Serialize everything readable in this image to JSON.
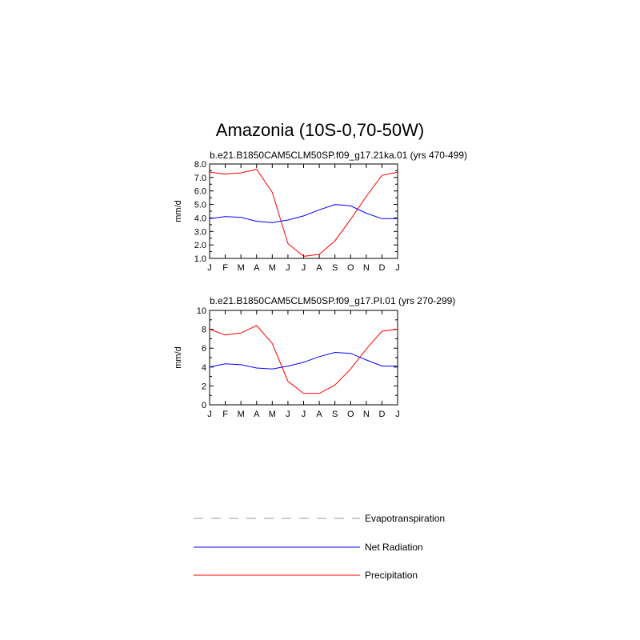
{
  "title": "Amazonia (10S-0,70-50W)",
  "colors": {
    "precipitation": "#ff0000",
    "net_radiation": "#0000ff",
    "evapotranspiration": "#999999"
  },
  "legend": [
    {
      "label": "Evapotranspiration",
      "color": "#999999",
      "style": "dashed"
    },
    {
      "label": "Net Radiation",
      "color": "#0000ff",
      "style": "solid"
    },
    {
      "label": "Precipitation",
      "color": "#ff0000",
      "style": "solid"
    }
  ],
  "chart_data": [
    {
      "type": "line",
      "title": "b.e21.B1850CAM5CLM50SP.f09_g17.21ka.01 (yrs 470-499)",
      "ylabel": "mm/d",
      "xlabel": "",
      "categories": [
        "J",
        "F",
        "M",
        "A",
        "M",
        "J",
        "J",
        "A",
        "S",
        "O",
        "N",
        "D",
        "J"
      ],
      "ylim": [
        1.0,
        8.0
      ],
      "yticks": [
        "1.0",
        "2.0",
        "3.0",
        "4.0",
        "5.0",
        "6.0",
        "7.0",
        "8.0"
      ],
      "ytick_values": [
        1,
        2,
        3,
        4,
        5,
        6,
        7,
        8
      ],
      "series": [
        {
          "name": "Precipitation",
          "values": [
            7.4,
            7.25,
            7.35,
            7.6,
            5.9,
            2.1,
            1.15,
            1.3,
            2.3,
            3.9,
            5.6,
            7.15,
            7.4
          ]
        },
        {
          "name": "Net Radiation",
          "values": [
            3.95,
            4.1,
            4.05,
            3.75,
            3.65,
            3.85,
            4.15,
            4.6,
            5.0,
            4.9,
            4.35,
            3.95,
            3.95
          ]
        }
      ]
    },
    {
      "type": "line",
      "title": "b.e21.B1850CAM5CLM50SP.f09_g17.PI.01 (yrs 270-299)",
      "ylabel": "mm/d",
      "xlabel": "",
      "categories": [
        "J",
        "F",
        "M",
        "A",
        "M",
        "J",
        "J",
        "A",
        "S",
        "O",
        "N",
        "D",
        "J"
      ],
      "ylim": [
        0,
        10
      ],
      "yticks": [
        "0",
        "2",
        "4",
        "6",
        "8",
        "10"
      ],
      "ytick_values": [
        0,
        2,
        4,
        6,
        8,
        10
      ],
      "series": [
        {
          "name": "Precipitation",
          "values": [
            8.0,
            7.4,
            7.6,
            8.4,
            6.5,
            2.5,
            1.2,
            1.2,
            2.1,
            3.8,
            5.9,
            7.8,
            8.0
          ]
        },
        {
          "name": "Net Radiation",
          "values": [
            4.0,
            4.35,
            4.25,
            3.9,
            3.8,
            4.1,
            4.5,
            5.1,
            5.55,
            5.45,
            4.75,
            4.1,
            4.1
          ]
        }
      ]
    }
  ]
}
